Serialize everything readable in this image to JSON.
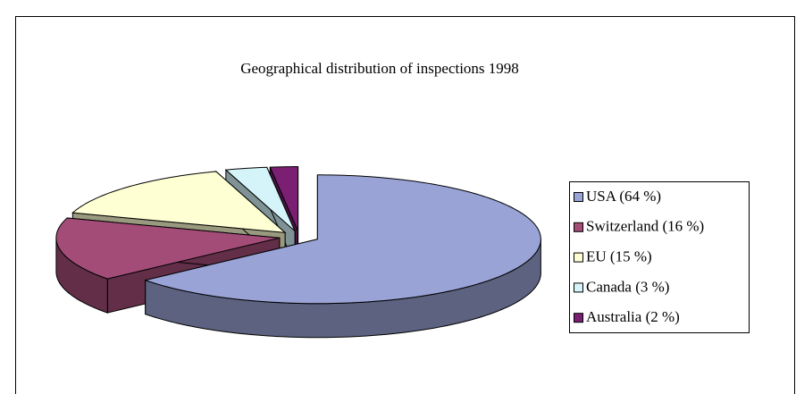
{
  "chart_data": {
    "type": "pie",
    "title": "Geographical distribution of inspections 1998",
    "categories": [
      "USA (64 %)",
      "Switzerland (16 %)",
      "EU (15 %)",
      "Canada (3 %)",
      "Australia (2 %)"
    ],
    "values": [
      64,
      16,
      15,
      3,
      2
    ],
    "colors": [
      "#99a3d6",
      "#a34c78",
      "#ffffd4",
      "#d4f4fa",
      "#7a1f72"
    ],
    "legend": "right"
  }
}
